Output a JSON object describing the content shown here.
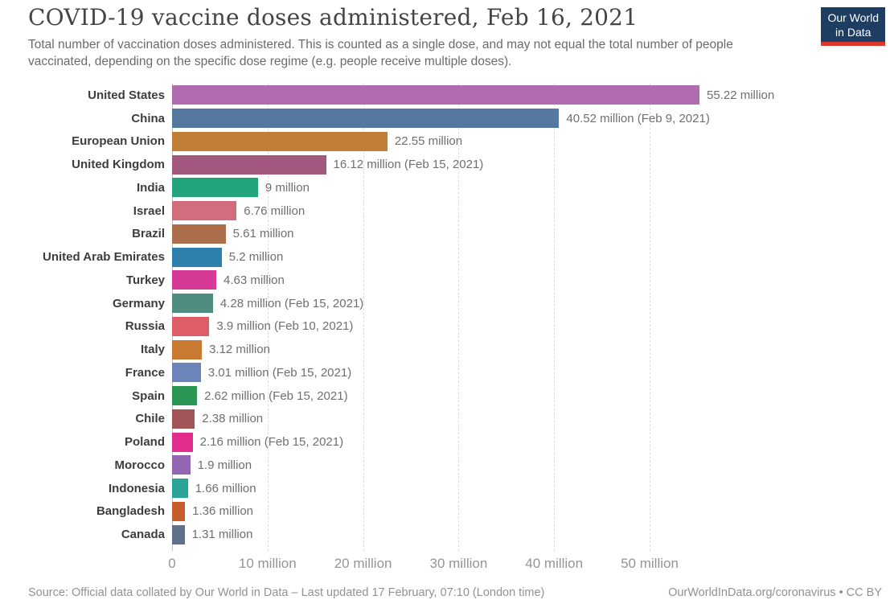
{
  "header": {
    "title": "COVID-19 vaccine doses administered, Feb 16, 2021",
    "subtitle": "Total number of vaccination doses administered. This is counted as a single dose, and may not equal the total number of people vaccinated, depending on the specific dose regime (e.g. people receive multiple doses)."
  },
  "logo": {
    "line1": "Our World",
    "line2": "in Data",
    "bg_color": "#1d3d63",
    "accent_color": "#dc372b"
  },
  "chart_data": {
    "type": "bar",
    "orientation": "horizontal",
    "title": "COVID-19 vaccine doses administered, Feb 16, 2021",
    "xlabel": "",
    "ylabel": "",
    "xlim": [
      0,
      55.22
    ],
    "grid": "vertical-dashed",
    "unit": "million doses",
    "x_ticks": [
      "0",
      "10 million",
      "20 million",
      "30 million",
      "40 million",
      "50 million"
    ],
    "x_tick_values": [
      0,
      10,
      20,
      30,
      40,
      50
    ],
    "entities": [
      {
        "name": "United States",
        "value": 55.22,
        "label": "55.22 million",
        "color": "#b16bb0"
      },
      {
        "name": "China",
        "value": 40.52,
        "label": "40.52 million (Feb 9, 2021)",
        "color": "#55789f"
      },
      {
        "name": "European Union",
        "value": 22.55,
        "label": "22.55 million",
        "color": "#c07e37"
      },
      {
        "name": "United Kingdom",
        "value": 16.12,
        "label": "16.12 million (Feb 15, 2021)",
        "color": "#a2587f"
      },
      {
        "name": "India",
        "value": 9,
        "label": "9 million",
        "color": "#24a47d"
      },
      {
        "name": "Israel",
        "value": 6.76,
        "label": "6.76 million",
        "color": "#d26d7e"
      },
      {
        "name": "Brazil",
        "value": 5.61,
        "label": "5.61 million",
        "color": "#ad6e4b"
      },
      {
        "name": "United Arab Emirates",
        "value": 5.2,
        "label": "5.2 million",
        "color": "#2d80ab"
      },
      {
        "name": "Turkey",
        "value": 4.63,
        "label": "4.63 million",
        "color": "#d63a96"
      },
      {
        "name": "Germany",
        "value": 4.28,
        "label": "4.28 million (Feb 15, 2021)",
        "color": "#4f8d80"
      },
      {
        "name": "Russia",
        "value": 3.9,
        "label": "3.9 million (Feb 10, 2021)",
        "color": "#dd5e67"
      },
      {
        "name": "Italy",
        "value": 3.12,
        "label": "3.12 million",
        "color": "#c87a33"
      },
      {
        "name": "France",
        "value": 3.01,
        "label": "3.01 million (Feb 15, 2021)",
        "color": "#6c84ba"
      },
      {
        "name": "Spain",
        "value": 2.62,
        "label": "2.62 million (Feb 15, 2021)",
        "color": "#2b9555"
      },
      {
        "name": "Chile",
        "value": 2.38,
        "label": "2.38 million",
        "color": "#a25458"
      },
      {
        "name": "Poland",
        "value": 2.16,
        "label": "2.16 million (Feb 15, 2021)",
        "color": "#e22d8c"
      },
      {
        "name": "Morocco",
        "value": 1.9,
        "label": "1.9 million",
        "color": "#9465b0"
      },
      {
        "name": "Indonesia",
        "value": 1.66,
        "label": "1.66 million",
        "color": "#2aa399"
      },
      {
        "name": "Bangladesh",
        "value": 1.36,
        "label": "1.36 million",
        "color": "#c75c2d"
      },
      {
        "name": "Canada",
        "value": 1.31,
        "label": "1.31 million",
        "color": "#627089"
      }
    ]
  },
  "footer": {
    "source": "Source: Official data collated by Our World in Data – Last updated 17 February, 07:10 (London time)",
    "link": "OurWorldInData.org/coronavirus • CC BY"
  }
}
